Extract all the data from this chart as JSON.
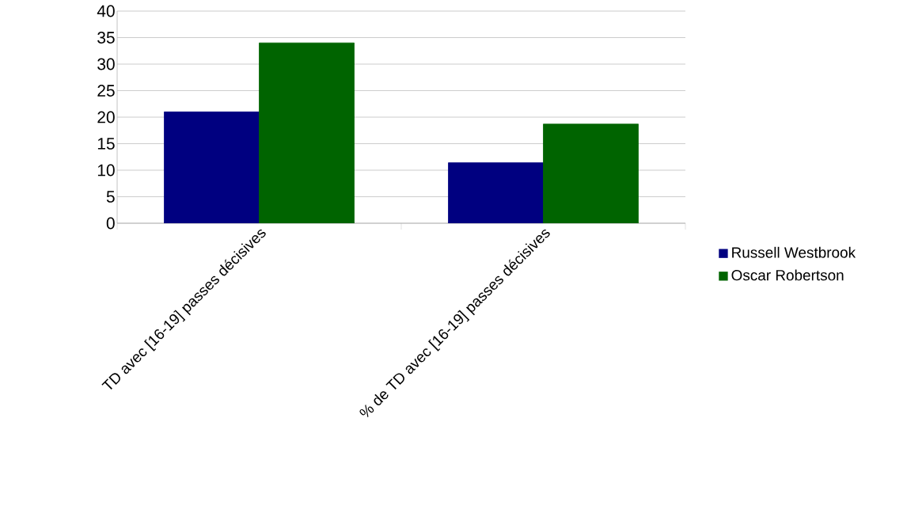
{
  "chart_data": {
    "type": "bar",
    "categories": [
      "TD avec [16-19] passes décisives",
      "% de TD avec [16-19] passes décisives"
    ],
    "series": [
      {
        "name": "Russell Westbrook",
        "color": "#000080",
        "values": [
          21,
          11.4
        ]
      },
      {
        "name": "Oscar Robertson",
        "color": "#006400",
        "values": [
          34,
          18.7
        ]
      }
    ],
    "ylim": [
      0,
      40
    ],
    "yticks": [
      0,
      5,
      10,
      15,
      20,
      25,
      30,
      35,
      40
    ],
    "grid": "y",
    "legend": "right"
  }
}
